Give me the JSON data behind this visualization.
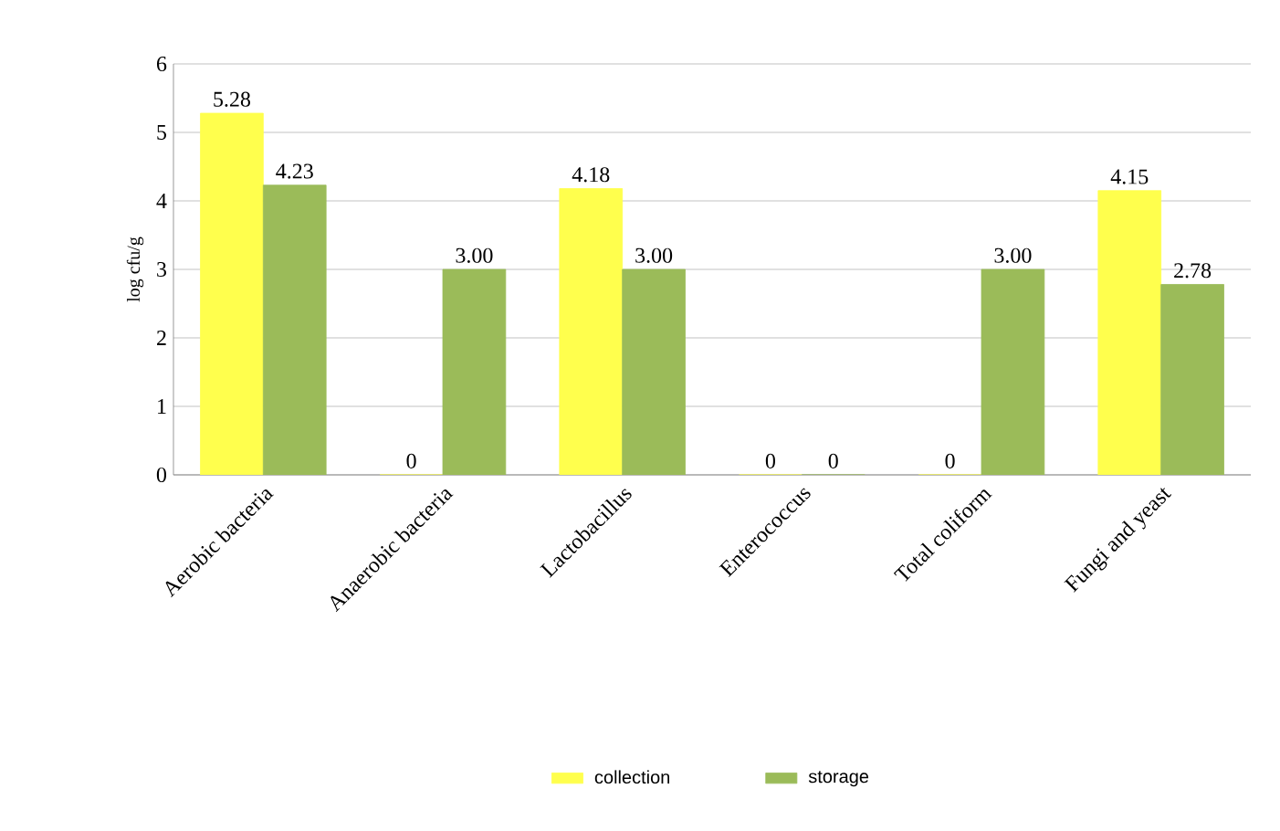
{
  "chart_data": {
    "type": "bar",
    "ylabel": "log cfu/g",
    "categories": [
      "Aerobic bacteria",
      "Anaerobic bacteria",
      "Lactobacillus",
      "Enterococcus",
      "Total coliform",
      "Fungi and yeast"
    ],
    "series": [
      {
        "name": "collection",
        "color": "#ffff4d",
        "values": [
          5.28,
          0,
          4.18,
          0,
          0,
          4.15
        ],
        "value_labels": [
          "5.28",
          "0",
          "4.18",
          "0",
          "0",
          "4.15"
        ]
      },
      {
        "name": "storage",
        "color": "#9bbb59",
        "values": [
          4.23,
          3.0,
          3.0,
          0,
          3.0,
          2.78
        ],
        "value_labels": [
          "4.23",
          "3.00",
          "3.00",
          "0",
          "3.00",
          "2.78"
        ]
      }
    ],
    "ylim": [
      0,
      6
    ],
    "yticks": [
      0,
      1,
      2,
      3,
      4,
      5,
      6
    ],
    "grid": "y",
    "legend": "bottom"
  }
}
